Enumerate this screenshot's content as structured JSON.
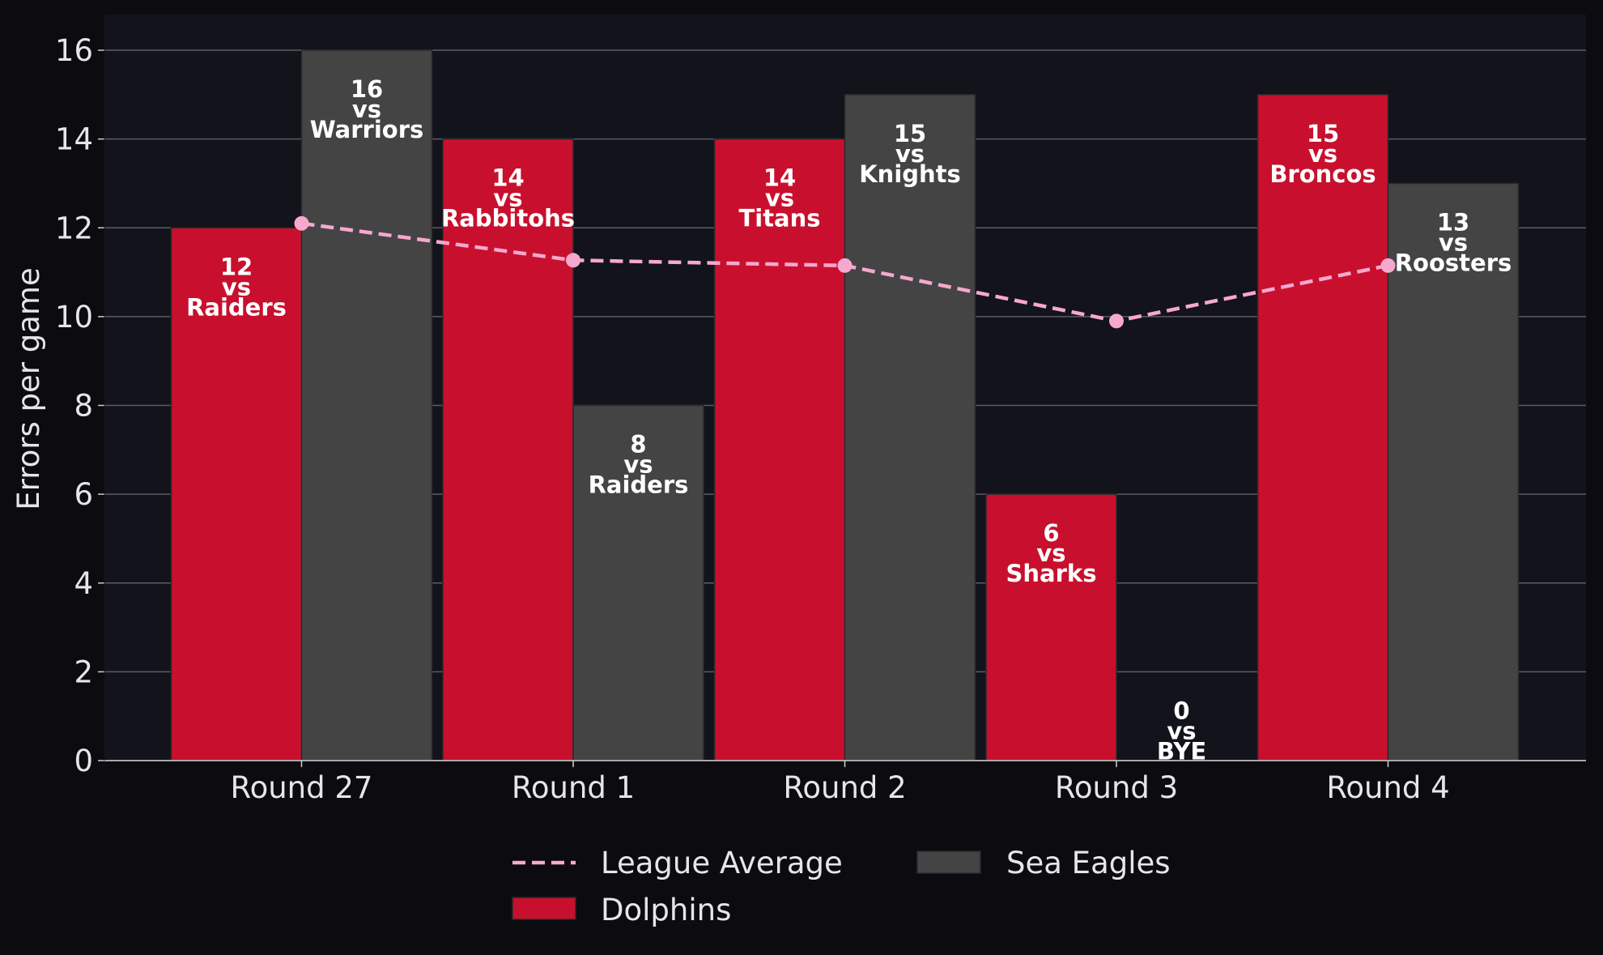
{
  "chart_data": {
    "type": "bar",
    "categories": [
      "Round 27",
      "Round 1",
      "Round 2",
      "Round 3",
      "Round 4"
    ],
    "ylabel": "Errors per game",
    "xlabel": "",
    "ylim": [
      0,
      16.8
    ],
    "yticks": [
      0,
      2,
      4,
      6,
      8,
      10,
      12,
      14,
      16
    ],
    "grid": "horizontal",
    "legend_position": "bottom-center",
    "series": [
      {
        "name": "Dolphins",
        "color": "#c8102e",
        "values": [
          12,
          14,
          14,
          6,
          15
        ],
        "opponents": [
          "Raiders",
          "Rabbitohs",
          "Titans",
          "Sharks",
          "Broncos"
        ]
      },
      {
        "name": "Sea Eagles",
        "color": "#444444",
        "values": [
          16,
          8,
          15,
          0,
          13
        ],
        "opponents": [
          "Warriors",
          "Raiders",
          "Knights",
          "BYE",
          "Roosters"
        ]
      }
    ],
    "line": {
      "name": "League Average",
      "color": "#f7a8cf",
      "style": "dashed",
      "values": [
        12.1,
        11.27,
        11.15,
        9.9,
        11.15
      ]
    },
    "vs_text": "vs"
  }
}
